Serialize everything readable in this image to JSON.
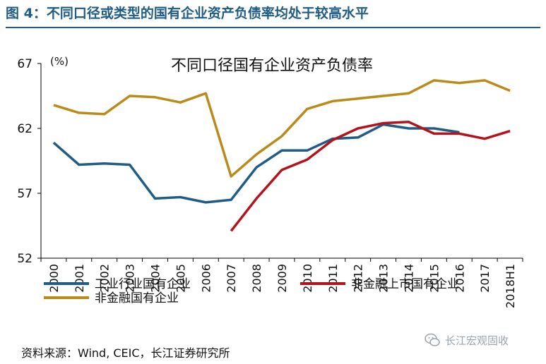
{
  "figure_title": "图 4：不同口径或类型的国有企业资产负债率均处于较高水平",
  "source": "资料来源：Wind, CEIC，长江证券研究所",
  "watermark": "长江宏观固收",
  "colors": {
    "title": "#1f5c86",
    "gridline": "#000000"
  },
  "chart_data": {
    "type": "line",
    "title": "不同口径国有企业资产负债率",
    "ylabel": "(%)",
    "xlabel": "",
    "categories": [
      "2000",
      "2001",
      "2002",
      "2003",
      "2004",
      "2005",
      "2006",
      "2007",
      "2008",
      "2009",
      "2010",
      "2011",
      "2012",
      "2013",
      "2014",
      "2015",
      "2016",
      "2017",
      "2018H1"
    ],
    "ylim": [
      52,
      67
    ],
    "yticks": [
      52,
      57,
      62,
      67
    ],
    "series": [
      {
        "name": "工业行业国有企业",
        "color": "#1f5c86",
        "values": [
          60.9,
          59.2,
          59.3,
          59.2,
          56.6,
          56.7,
          56.3,
          56.5,
          59.0,
          60.3,
          60.3,
          61.2,
          61.3,
          62.3,
          62.0,
          62.0,
          61.7,
          null,
          null
        ]
      },
      {
        "name": "非金融上市国有企业",
        "color": "#b3141c",
        "values": [
          null,
          null,
          null,
          null,
          null,
          null,
          null,
          54.1,
          56.6,
          58.8,
          59.6,
          61.1,
          62.0,
          62.4,
          62.5,
          61.6,
          61.6,
          61.2,
          61.8
        ]
      },
      {
        "name": "非金融国有企业",
        "color": "#b88b1a",
        "values": [
          63.8,
          63.2,
          63.1,
          64.5,
          64.4,
          64.0,
          64.7,
          58.3,
          60.0,
          61.4,
          63.5,
          64.1,
          64.3,
          64.5,
          64.7,
          65.7,
          65.5,
          65.7,
          64.9
        ]
      }
    ]
  }
}
